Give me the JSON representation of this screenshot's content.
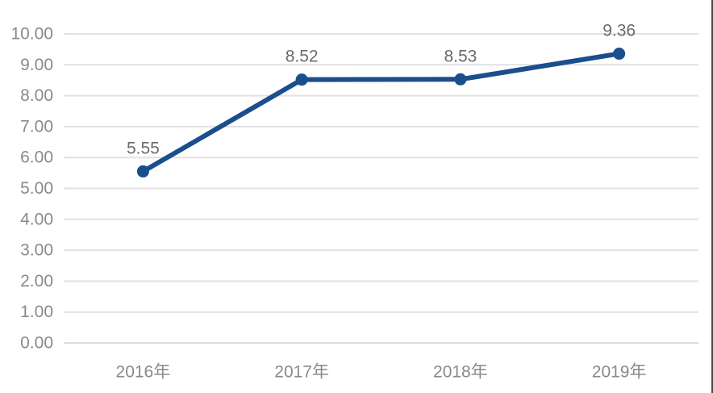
{
  "chart_data": {
    "type": "line",
    "categories": [
      "2016年",
      "2017年",
      "2018年",
      "2019年"
    ],
    "series": [
      {
        "name": "value",
        "values": [
          5.55,
          8.52,
          8.53,
          9.36
        ],
        "labels": [
          "5.55",
          "8.52",
          "8.53",
          "9.36"
        ]
      }
    ],
    "title": "",
    "xlabel": "",
    "ylabel": "",
    "ylim": [
      0,
      10
    ],
    "y_tick_values": [
      0,
      1,
      2,
      3,
      4,
      5,
      6,
      7,
      8,
      9,
      10
    ],
    "y_tick_labels": [
      "0.00",
      "1.00",
      "2.00",
      "3.00",
      "4.00",
      "5.00",
      "6.00",
      "7.00",
      "8.00",
      "9.00",
      "10.00"
    ],
    "grid": "horizontal",
    "legend": "none",
    "colors": {
      "line": "#1b4e8c",
      "marker": "#1b4e8c",
      "gridline": "#e2e2e2",
      "axis_line": "#dcdcdc",
      "axis_text": "#8a8a8a",
      "data_label_text": "#6b6b6b",
      "background": "#ffffff",
      "right_edge_artifact": "#474747"
    }
  }
}
